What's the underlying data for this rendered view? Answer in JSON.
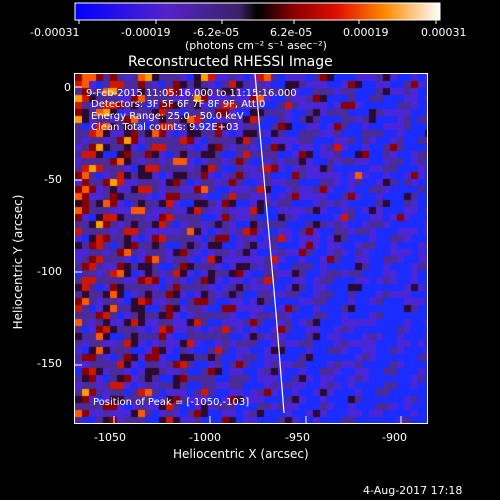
{
  "colorbar": {
    "ticks": [
      "-0.00031",
      "-0.00019",
      "-6.2e-05",
      "6.2e-05",
      "0.00019",
      "0.00031"
    ],
    "unit_label": "(photons cm⁻² s⁻¹ asec⁻²)"
  },
  "plot": {
    "title": "Reconstructed RHESSI Image",
    "xlabel": "Heliocentric X (arcsec)",
    "ylabel": "Heliocentric Y (arcsec)",
    "x_ticks": [
      "-1050",
      "-1000",
      "-950",
      "-900"
    ],
    "y_ticks": [
      "0",
      "-50",
      "-100",
      "-150"
    ],
    "info": {
      "time": "9-Feb-2015 11:05:16.000 to 11:15:16.000",
      "detectors": "Detectors: 3F 5F 6F 7F 8F 9F, Att 0",
      "energy": "Energy Range: 25.0 - 50.0 keV",
      "clean": "Clean    Total counts: 9.92E+03"
    },
    "peak_label": "Position of Peak = [-1050,-103]"
  },
  "footer": {
    "date": "4-Aug-2017 17:18"
  }
}
